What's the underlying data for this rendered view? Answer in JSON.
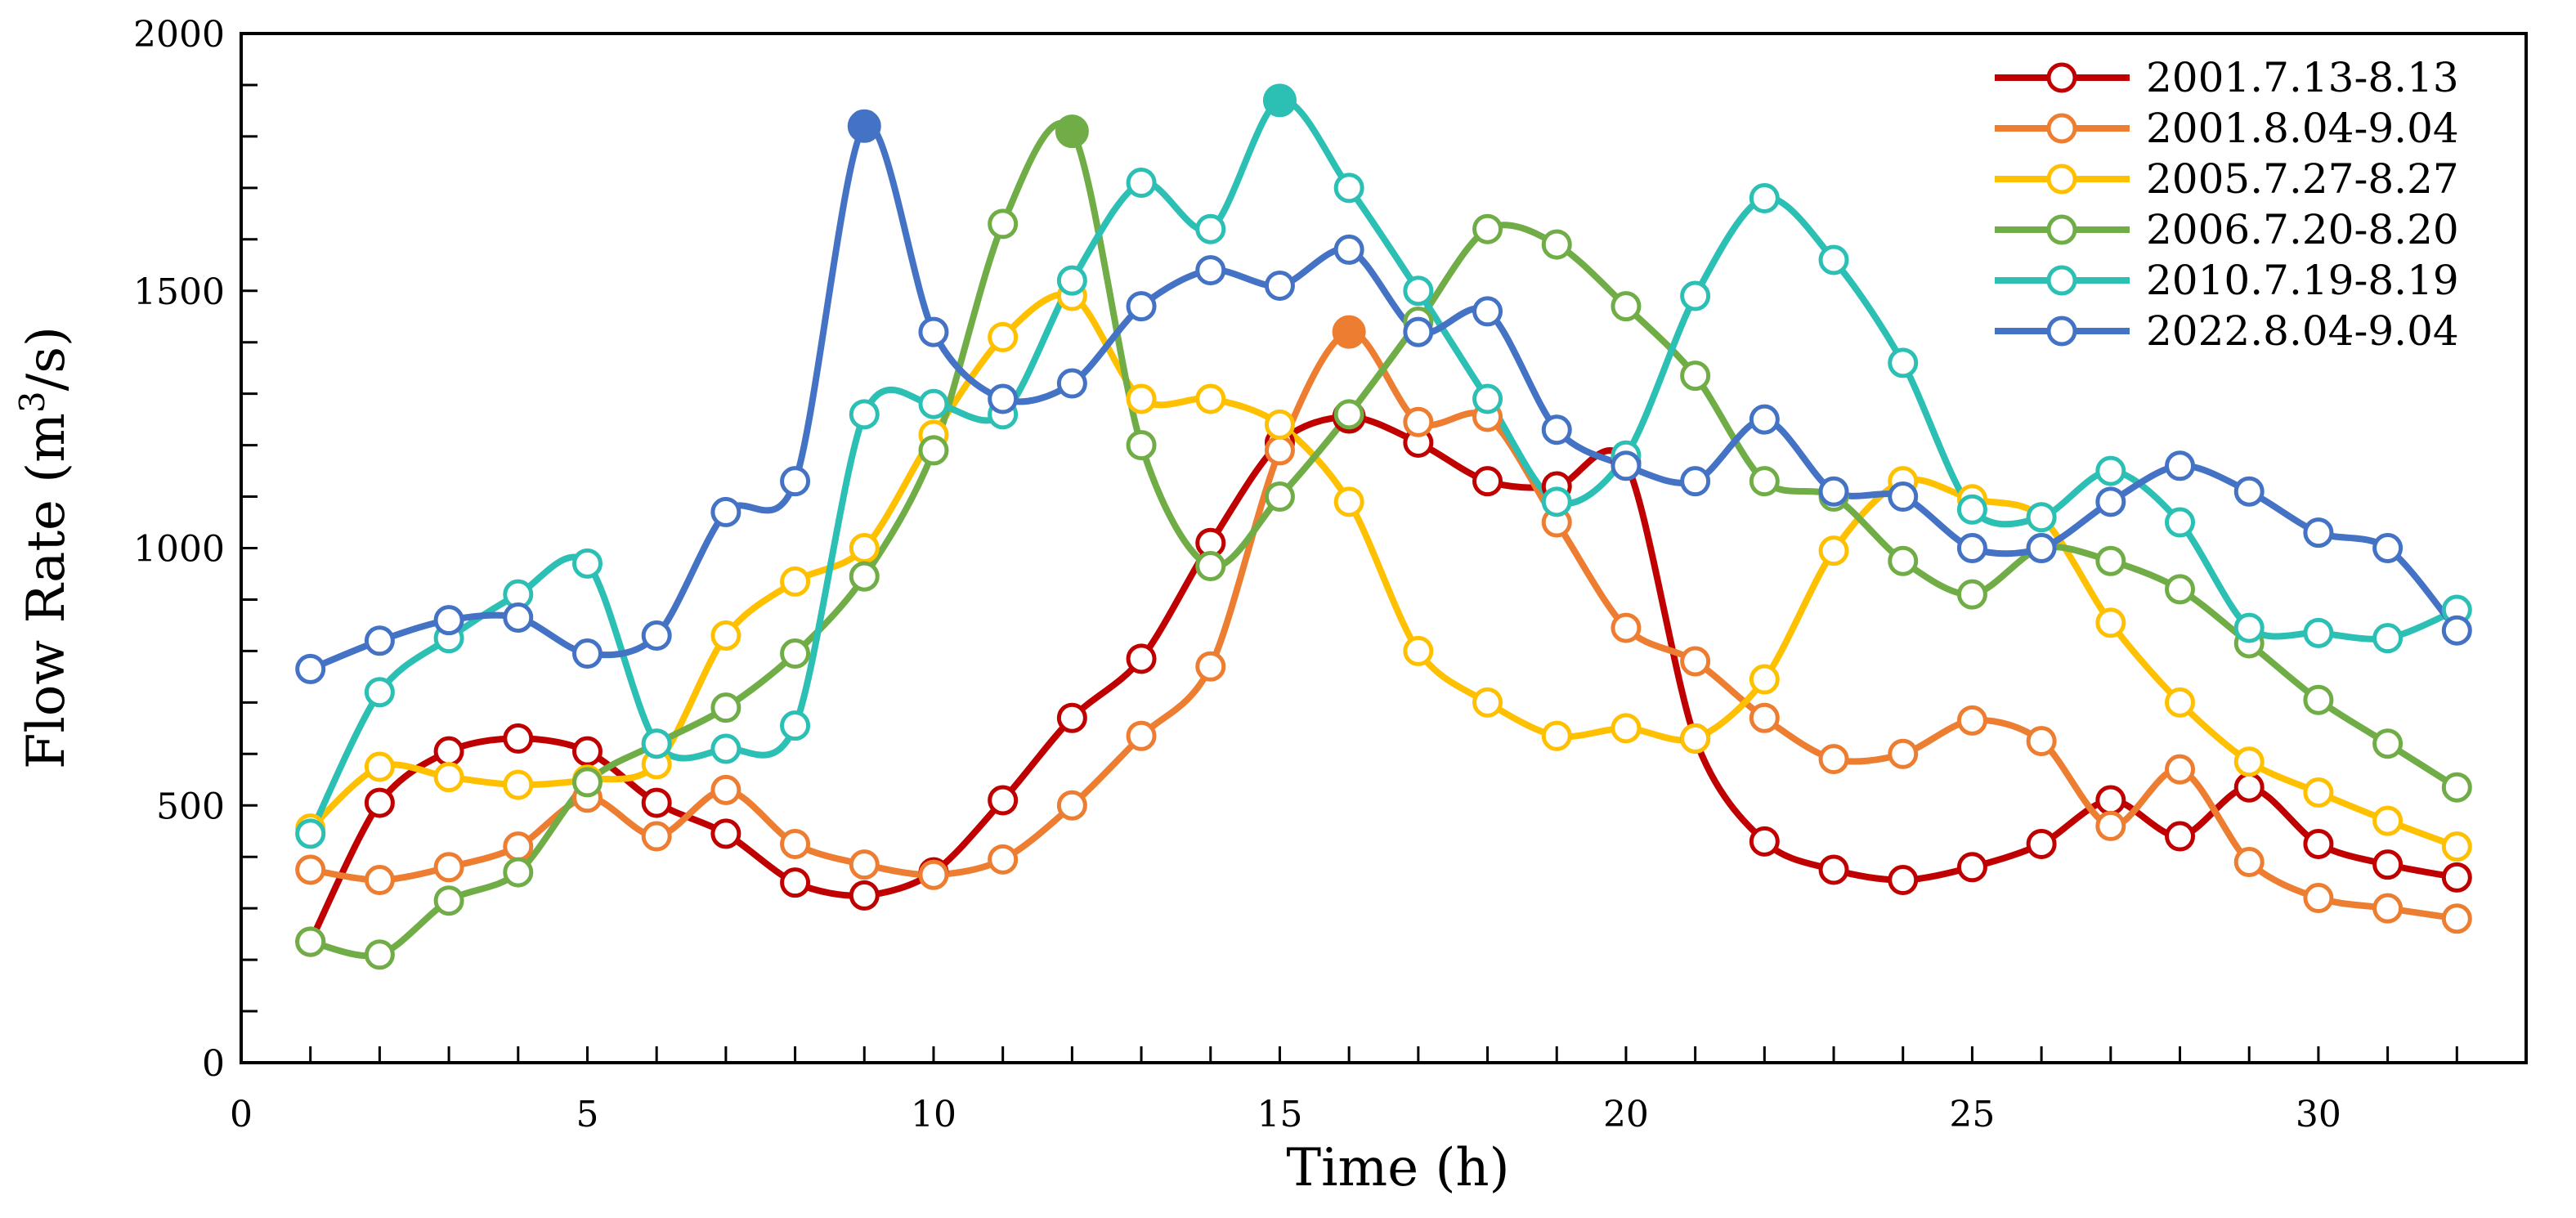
{
  "chart_data": {
    "type": "line",
    "xlabel": "Time (h)",
    "ylabel_parts": [
      "Flow Rate (m",
      "3",
      "/s)"
    ],
    "xlim": [
      0,
      33
    ],
    "ylim": [
      0,
      2000
    ],
    "x_ticks": [
      0,
      5,
      10,
      15,
      20,
      25,
      30
    ],
    "y_ticks": [
      0,
      500,
      1000,
      1500,
      2000
    ],
    "legend_position": "top-right",
    "x": [
      1,
      2,
      3,
      4,
      5,
      6,
      7,
      8,
      9,
      10,
      11,
      12,
      13,
      14,
      15,
      16,
      17,
      18,
      19,
      20,
      21,
      22,
      23,
      24,
      25,
      26,
      27,
      28,
      29,
      30,
      31,
      32
    ],
    "series": [
      {
        "name": "2001.7.13-8.13",
        "color": "#c00000",
        "peak_index": 15,
        "values": [
          235,
          505,
          605,
          630,
          605,
          505,
          445,
          350,
          325,
          370,
          510,
          670,
          785,
          1010,
          1205,
          1255,
          1205,
          1130,
          1120,
          1165,
          630,
          430,
          375,
          355,
          380,
          425,
          510,
          440,
          535,
          425,
          385,
          360
        ]
      },
      {
        "name": "2001.8.04-9.04",
        "color": "#ed7d31",
        "peak_index": 15,
        "values": [
          375,
          355,
          380,
          420,
          515,
          440,
          530,
          425,
          385,
          365,
          395,
          500,
          635,
          770,
          1190,
          1420,
          1245,
          1255,
          1050,
          845,
          780,
          670,
          590,
          600,
          665,
          625,
          460,
          570,
          390,
          320,
          300,
          280
        ]
      },
      {
        "name": "2005.7.27-8.27",
        "color": "#ffc000",
        "peak_index": -1,
        "values": [
          455,
          575,
          555,
          540,
          550,
          580,
          830,
          935,
          1000,
          1220,
          1410,
          1490,
          1290,
          1290,
          1240,
          1090,
          800,
          700,
          635,
          650,
          630,
          745,
          995,
          1130,
          1095,
          1060,
          855,
          700,
          585,
          525,
          470,
          420
        ]
      },
      {
        "name": "2006.7.20-8.20",
        "color": "#70ad47",
        "peak_index": 11,
        "values": [
          235,
          210,
          315,
          370,
          545,
          620,
          690,
          795,
          945,
          1190,
          1630,
          1810,
          1200,
          965,
          1100,
          1260,
          1440,
          1620,
          1590,
          1470,
          1335,
          1130,
          1100,
          975,
          910,
          1000,
          975,
          920,
          815,
          705,
          620,
          535
        ]
      },
      {
        "name": "2010.7.19-8.19",
        "color": "#2cbfb4",
        "peak_index": 14,
        "values": [
          445,
          720,
          825,
          910,
          970,
          620,
          610,
          655,
          1260,
          1280,
          1260,
          1520,
          1710,
          1620,
          1870,
          1700,
          1500,
          1290,
          1090,
          1180,
          1490,
          1680,
          1560,
          1360,
          1075,
          1060,
          1150,
          1050,
          845,
          835,
          825,
          880
        ]
      },
      {
        "name": "2022.8.04-9.04",
        "color": "#4472c4",
        "peak_index": 8,
        "values": [
          765,
          820,
          860,
          865,
          795,
          830,
          1070,
          1130,
          1820,
          1420,
          1290,
          1320,
          1470,
          1540,
          1510,
          1580,
          1420,
          1460,
          1230,
          1160,
          1130,
          1250,
          1110,
          1100,
          1000,
          1000,
          1090,
          1160,
          1110,
          1030,
          1000,
          840
        ]
      }
    ]
  }
}
